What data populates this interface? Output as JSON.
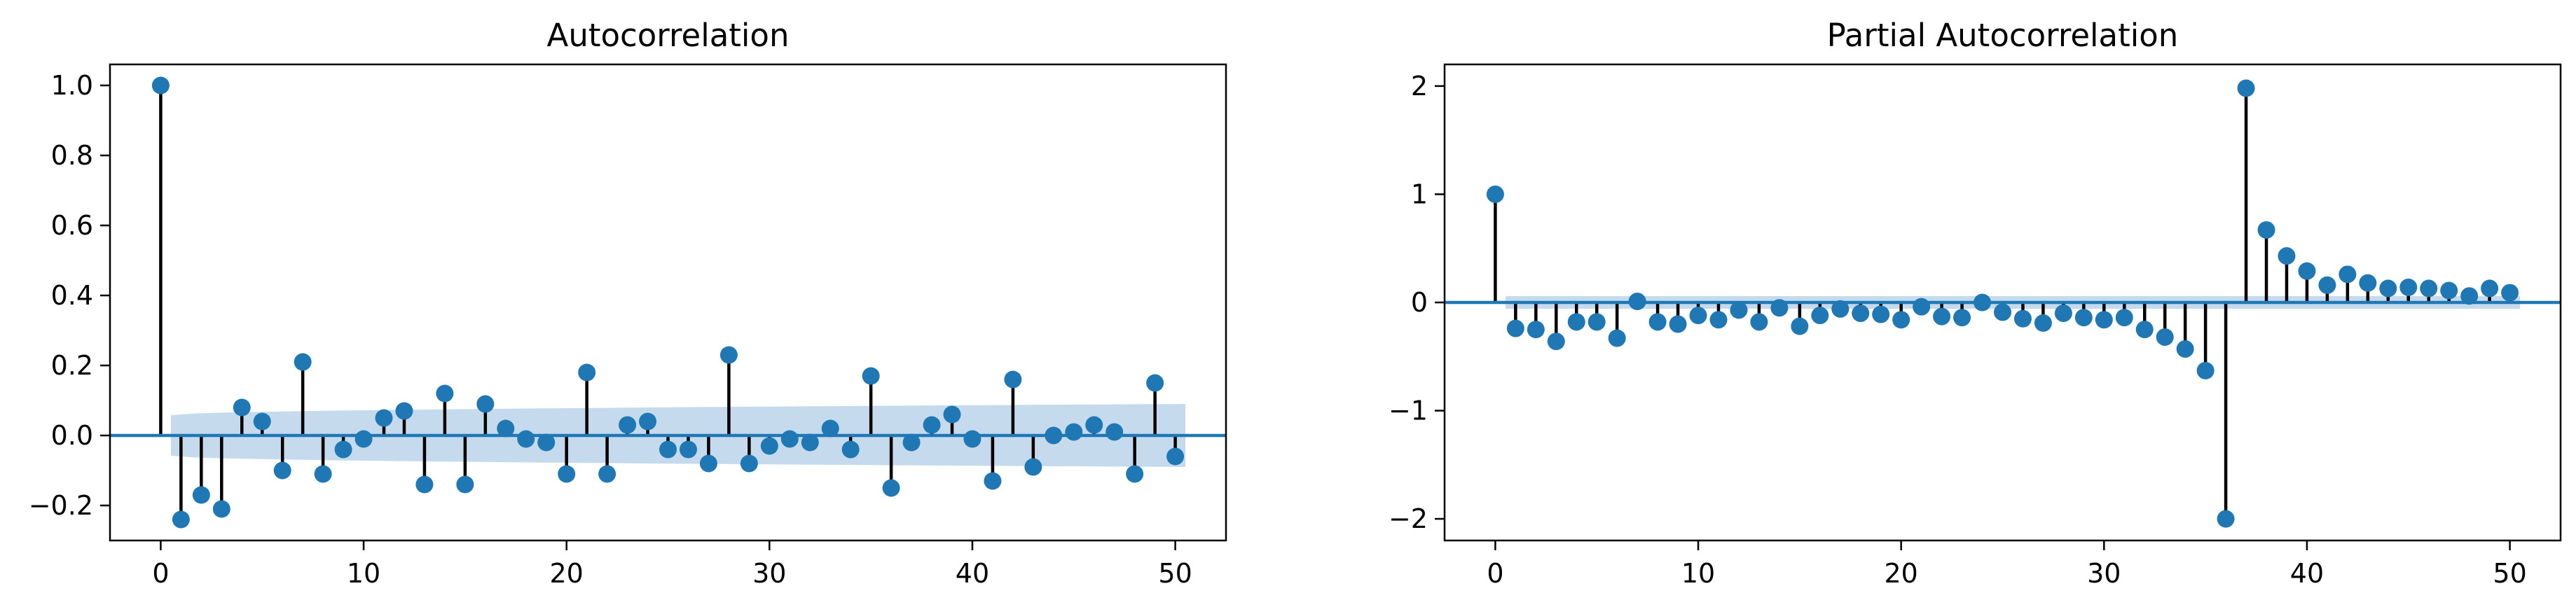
{
  "chart_data": [
    {
      "type": "stem",
      "title": "Autocorrelation",
      "xlabel": "",
      "ylabel": "",
      "xlim": [
        -2.5,
        52.5
      ],
      "ylim": [
        -0.3,
        1.06
      ],
      "xticks": [
        0,
        10,
        20,
        30,
        40,
        50
      ],
      "yticks": [
        -0.2,
        0.0,
        0.2,
        0.4,
        0.6,
        0.8,
        1.0
      ],
      "ytick_labels": [
        "−0.2",
        "0.0",
        "0.2",
        "0.4",
        "0.6",
        "0.8",
        "1.0"
      ],
      "xtick_labels": [
        "0",
        "10",
        "20",
        "30",
        "40",
        "50"
      ],
      "lags": [
        0,
        1,
        2,
        3,
        4,
        5,
        6,
        7,
        8,
        9,
        10,
        11,
        12,
        13,
        14,
        15,
        16,
        17,
        18,
        19,
        20,
        21,
        22,
        23,
        24,
        25,
        26,
        27,
        28,
        29,
        30,
        31,
        32,
        33,
        34,
        35,
        36,
        37,
        38,
        39,
        40,
        41,
        42,
        43,
        44,
        45,
        46,
        47,
        48,
        49,
        50
      ],
      "values": [
        1.0,
        -0.24,
        -0.17,
        -0.21,
        0.08,
        0.04,
        -0.1,
        0.21,
        -0.11,
        -0.04,
        -0.01,
        0.05,
        0.07,
        -0.14,
        0.12,
        -0.14,
        0.09,
        0.02,
        -0.01,
        -0.02,
        -0.11,
        0.18,
        -0.11,
        0.03,
        0.04,
        -0.04,
        -0.04,
        -0.08,
        0.23,
        -0.08,
        -0.03,
        -0.01,
        -0.02,
        0.02,
        -0.04,
        0.17,
        -0.15,
        -0.02,
        0.03,
        0.06,
        -0.01,
        -0.13,
        0.16,
        -0.09,
        0.0,
        0.01,
        0.03,
        0.01,
        -0.11,
        0.15,
        -0.06
      ],
      "conf_band": {
        "lag_start": 0.5,
        "lag_end": 50.5,
        "upper_start": 0.058,
        "upper_end": 0.09
      },
      "grid": false,
      "colors": {
        "marker": "#1f77b4",
        "stem": "#000000",
        "band": "#a6c8e3",
        "baseline": "#1f77b4"
      }
    },
    {
      "type": "stem",
      "title": "Partial Autocorrelation",
      "xlabel": "",
      "ylabel": "",
      "xlim": [
        -2.5,
        52.5
      ],
      "ylim": [
        -2.2,
        2.2
      ],
      "xticks": [
        0,
        10,
        20,
        30,
        40,
        50
      ],
      "yticks": [
        -2,
        -1,
        0,
        1,
        2
      ],
      "ytick_labels": [
        "−2",
        "−1",
        "0",
        "1",
        "2"
      ],
      "xtick_labels": [
        "0",
        "10",
        "20",
        "30",
        "40",
        "50"
      ],
      "lags": [
        0,
        1,
        2,
        3,
        4,
        5,
        6,
        7,
        8,
        9,
        10,
        11,
        12,
        13,
        14,
        15,
        16,
        17,
        18,
        19,
        20,
        21,
        22,
        23,
        24,
        25,
        26,
        27,
        28,
        29,
        30,
        31,
        32,
        33,
        34,
        35,
        36,
        37,
        38,
        39,
        40,
        41,
        42,
        43,
        44,
        45,
        46,
        47,
        48,
        49,
        50
      ],
      "values": [
        1.0,
        -0.24,
        -0.25,
        -0.36,
        -0.18,
        -0.18,
        -0.33,
        0.01,
        -0.18,
        -0.2,
        -0.12,
        -0.16,
        -0.07,
        -0.18,
        -0.05,
        -0.22,
        -0.12,
        -0.06,
        -0.1,
        -0.11,
        -0.16,
        -0.04,
        -0.13,
        -0.14,
        0.0,
        -0.09,
        -0.15,
        -0.19,
        -0.1,
        -0.14,
        -0.16,
        -0.14,
        -0.25,
        -0.32,
        -0.43,
        -0.63,
        -2.0,
        1.98,
        0.67,
        0.43,
        0.29,
        0.16,
        0.26,
        0.18,
        0.13,
        0.14,
        0.13,
        0.11,
        0.06,
        0.13,
        0.09
      ],
      "conf_band": {
        "lag_start": 0.5,
        "lag_end": 50.5,
        "upper_start": 0.058,
        "upper_end": 0.058
      },
      "grid": false,
      "colors": {
        "marker": "#1f77b4",
        "stem": "#000000",
        "band": "#a6c8e3",
        "baseline": "#1f77b4"
      }
    }
  ]
}
